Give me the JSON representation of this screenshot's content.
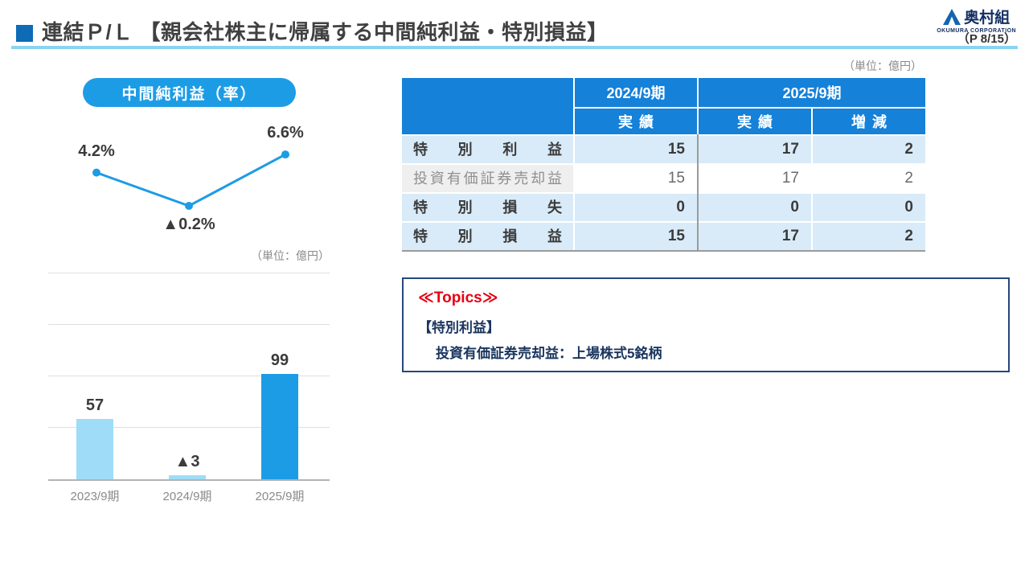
{
  "header": {
    "title": "連結Ｐ/Ｌ 【親会社株主に帰属する中間純利益・特別損益】",
    "logo_name": "奥村組",
    "logo_subtitle": "OKUMURA CORPORATION",
    "page_number": "（P 8/15）"
  },
  "left_panel": {
    "pill_label": "中間純利益（率）",
    "unit_label": "（単位：億円）"
  },
  "table": {
    "unit_label": "（単位：億円）",
    "header": {
      "fy2024": "2024/9期",
      "fy2025": "2025/9期",
      "actual_2024": "実績",
      "actual_2025": "実績",
      "change": "増減"
    },
    "rows": [
      {
        "label": "特別利益",
        "fy2024": "15",
        "fy2025": "17",
        "change": "2"
      },
      {
        "label": "投資有価証券売却益",
        "fy2024": "15",
        "fy2025": "17",
        "change": "2"
      },
      {
        "label": "特別損失",
        "fy2024": "0",
        "fy2025": "0",
        "change": "0"
      },
      {
        "label": "特別損益",
        "fy2024": "15",
        "fy2025": "17",
        "change": "2"
      }
    ]
  },
  "topics": {
    "title": "≪Topics≫",
    "line1": "【特別利益】",
    "line2": "投資有価証券売却益：上場株式5銘柄"
  },
  "chart_data": [
    {
      "type": "line",
      "title": "中間純利益（率）",
      "categories": [
        "2023/9期",
        "2024/9期",
        "2025/9期"
      ],
      "values": [
        4.2,
        -0.2,
        6.6
      ],
      "labels": [
        "4.2%",
        "▲0.2%",
        "6.6%"
      ],
      "unit": "%",
      "line_color": "#1d9ce6"
    },
    {
      "type": "bar",
      "title": "中間純利益",
      "categories": [
        "2023/9期",
        "2024/9期",
        "2025/9期"
      ],
      "values": [
        57,
        -3,
        99
      ],
      "labels": [
        "57",
        "▲3",
        "99"
      ],
      "unit": "億円",
      "ylim": [
        0,
        130
      ],
      "grid": true,
      "bar_colors": [
        "#9edcf7",
        "#9edcf7",
        "#1d9ce6"
      ]
    }
  ],
  "colors": {
    "accent_blue": "#1d9ce6",
    "table_header_blue": "#1581d9",
    "row_highlight": "#d9ebf8",
    "light_bar": "#9edcf7",
    "topics_red": "#e60012",
    "navy_text": "#19355e",
    "underline_blue": "#8bd3f2",
    "title_bullet_blue": "#0d6bb8"
  }
}
